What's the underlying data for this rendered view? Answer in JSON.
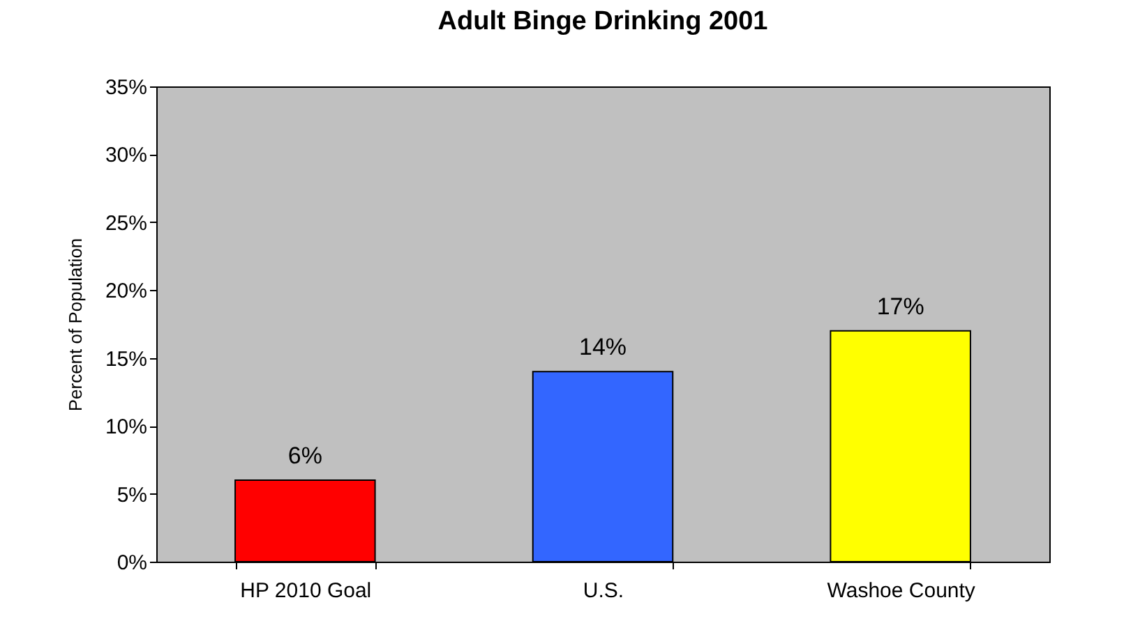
{
  "chart_data": {
    "type": "bar",
    "title": "Adult Binge Drinking 2001",
    "ylabel": "Percent of Population",
    "categories": [
      "HP 2010 Goal",
      "U.S.",
      "Washoe County"
    ],
    "values": [
      6,
      14,
      17
    ],
    "colors": [
      "#ff0000",
      "#3366ff",
      "#ffff00"
    ],
    "value_labels": [
      "6%",
      "14%",
      "17%"
    ],
    "ylim": [
      0,
      35
    ],
    "yticks": [
      {
        "value": 0,
        "label": "0%"
      },
      {
        "value": 5,
        "label": "5%"
      },
      {
        "value": 10,
        "label": "10%"
      },
      {
        "value": 15,
        "label": "15%"
      },
      {
        "value": 20,
        "label": "20%"
      },
      {
        "value": 25,
        "label": "25%"
      },
      {
        "value": 30,
        "label": "30%"
      },
      {
        "value": 35,
        "label": "35%"
      }
    ],
    "grid": false,
    "legend": false
  }
}
